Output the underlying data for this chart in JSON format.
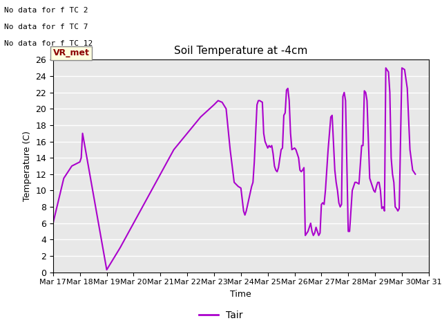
{
  "title": "Soil Temperature at -4cm",
  "xlabel": "Time",
  "ylabel": "Temperature (C)",
  "ylim": [
    0,
    26
  ],
  "xlim": [
    0,
    14
  ],
  "line_color": "#AA00CC",
  "line_color2": "#CC88CC",
  "line_width": 1.5,
  "background_color": "#E8E8E8",
  "grid_color": "white",
  "text_annotations": [
    "No data for f TC 2",
    "No data for f TC 7",
    "No data for f TC 12"
  ],
  "vr_met_label": "VR_met",
  "legend_label": "Tair",
  "x_tick_labels": [
    "Mar 17",
    "Mar 18",
    "Mar 19",
    "Mar 20",
    "Mar 21",
    "Mar 22",
    "Mar 23",
    "Mar 24",
    "Mar 25",
    "Mar 26",
    "Mar 27",
    "Mar 28",
    "Mar 29",
    "Mar 30",
    "Mar 31"
  ],
  "x_tick_positions": [
    0,
    1,
    2,
    3,
    4,
    5,
    6,
    7,
    8,
    9,
    10,
    11,
    12,
    13,
    14
  ],
  "y_tick_positions": [
    0,
    2,
    4,
    6,
    8,
    10,
    12,
    14,
    16,
    18,
    20,
    22,
    24,
    26
  ],
  "data_x": [
    0.0,
    0.4,
    0.7,
    1.0,
    1.05,
    1.1,
    2.0,
    2.5,
    3.0,
    3.5,
    4.0,
    4.5,
    5.0,
    5.5,
    6.0,
    6.15,
    6.3,
    6.45,
    6.6,
    6.75,
    6.9,
    7.0,
    7.1,
    7.15,
    7.2,
    7.3,
    7.4,
    7.45,
    7.5,
    7.6,
    7.65,
    7.7,
    7.8,
    7.85,
    7.9,
    8.0,
    8.05,
    8.1,
    8.15,
    8.2,
    8.25,
    8.3,
    8.35,
    8.4,
    8.5,
    8.55,
    8.6,
    8.65,
    8.7,
    8.75,
    8.8,
    8.85,
    8.9,
    9.0,
    9.05,
    9.1,
    9.15,
    9.2,
    9.25,
    9.3,
    9.35,
    9.4,
    9.5,
    9.55,
    9.6,
    9.65,
    9.7,
    9.75,
    9.8,
    9.85,
    9.9,
    9.95,
    10.0,
    10.05,
    10.1,
    10.15,
    10.2,
    10.25,
    10.3,
    10.35,
    10.4,
    10.5,
    10.55,
    10.6,
    10.65,
    10.7,
    10.75,
    10.8,
    10.85,
    10.9,
    11.0,
    11.05,
    11.1,
    11.15,
    11.2,
    11.25,
    11.3,
    11.4,
    11.5,
    11.55,
    11.6,
    11.65,
    11.7,
    11.8,
    11.85,
    11.9,
    11.95,
    12.0,
    12.05,
    12.1,
    12.15,
    12.2,
    12.25,
    12.3,
    12.35,
    12.4,
    12.5,
    12.55,
    12.6,
    12.65,
    12.7,
    12.75,
    12.8,
    12.85,
    12.9,
    13.0,
    13.1,
    13.2,
    13.3,
    13.4,
    13.5
  ],
  "data_y": [
    6.0,
    11.5,
    13.0,
    13.5,
    14.0,
    17.0,
    0.3,
    3.0,
    6.0,
    9.0,
    12.0,
    15.0,
    17.0,
    19.0,
    20.5,
    21.0,
    20.8,
    20.0,
    15.0,
    11.0,
    10.5,
    10.3,
    7.5,
    7.0,
    7.5,
    9.0,
    10.5,
    11.0,
    13.5,
    20.5,
    21.0,
    21.0,
    20.8,
    17.0,
    16.0,
    15.2,
    15.5,
    15.3,
    15.5,
    14.5,
    13.0,
    12.5,
    12.3,
    12.8,
    15.0,
    15.2,
    19.2,
    19.5,
    22.3,
    22.5,
    21.0,
    17.0,
    15.0,
    15.2,
    15.0,
    14.5,
    14.0,
    12.5,
    12.3,
    12.5,
    12.8,
    4.5,
    5.0,
    5.5,
    6.0,
    5.0,
    4.5,
    4.8,
    5.5,
    5.0,
    4.5,
    4.8,
    8.3,
    8.5,
    8.3,
    10.0,
    12.5,
    15.0,
    17.0,
    19.0,
    19.2,
    12.5,
    11.0,
    10.0,
    8.5,
    8.0,
    8.3,
    21.5,
    22.0,
    21.0,
    5.0,
    5.0,
    7.5,
    10.0,
    10.5,
    11.0,
    11.0,
    10.8,
    15.5,
    15.5,
    22.2,
    22.0,
    21.0,
    11.5,
    11.0,
    10.5,
    10.0,
    9.8,
    10.5,
    11.0,
    11.0,
    10.0,
    7.8,
    8.0,
    7.5,
    25.0,
    24.5,
    22.0,
    14.0,
    12.0,
    11.0,
    8.0,
    7.8,
    7.5,
    7.8,
    25.0,
    24.8,
    22.5,
    15.0,
    12.5,
    12.0
  ]
}
